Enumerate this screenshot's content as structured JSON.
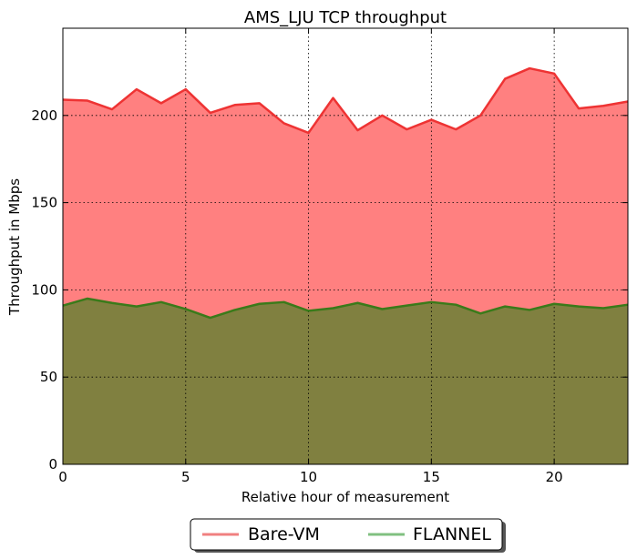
{
  "chart_data": {
    "type": "area",
    "title": "AMS_LJU TCP throughput",
    "xlabel": "Relative hour of measurement",
    "ylabel": "Throughput in Mbps",
    "xlim": [
      0,
      23
    ],
    "ylim": [
      0,
      250
    ],
    "xticks": [
      0,
      5,
      10,
      15,
      20
    ],
    "yticks": [
      0,
      50,
      100,
      150,
      200
    ],
    "grid": true,
    "legend_position": "bottom-center",
    "x": [
      0,
      1,
      2,
      3,
      4,
      5,
      6,
      7,
      8,
      9,
      10,
      11,
      12,
      13,
      14,
      15,
      16,
      17,
      18,
      19,
      20,
      21,
      22,
      23
    ],
    "series": [
      {
        "name": "Bare-VM",
        "line_color": "#ee3333",
        "fill_color": "#ff8080",
        "legend_color": "#f08080",
        "values": [
          209,
          208.5,
          203.5,
          215,
          207,
          215,
          201.5,
          206,
          207,
          195.5,
          190,
          210,
          191.5,
          200,
          192,
          197.5,
          192,
          200,
          221,
          227,
          224,
          204,
          205.5,
          208
        ]
      },
      {
        "name": "FLANNEL",
        "line_color": "#3a7a1a",
        "fill_color": "#808040",
        "legend_color": "#80c080",
        "values": [
          91,
          95,
          92.5,
          90.5,
          93,
          89,
          84,
          88.5,
          92,
          93,
          88,
          89.5,
          92.5,
          89,
          91,
          93,
          91.5,
          86.5,
          90.5,
          88.5,
          92,
          90.5,
          89.5,
          91.5
        ]
      }
    ]
  }
}
